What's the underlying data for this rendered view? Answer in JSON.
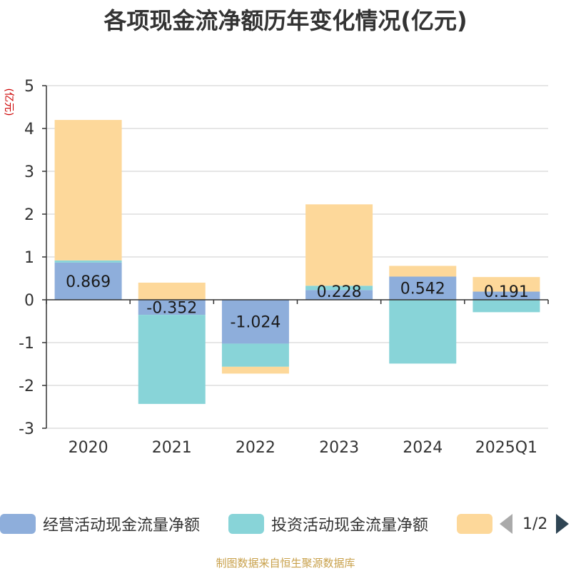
{
  "chart_data": {
    "type": "bar",
    "stacked": true,
    "title": "各项现金流净额历年变化情况(亿元)",
    "ylabel": "(亿元)",
    "xlabel": "",
    "ylim": [
      -3,
      5
    ],
    "yticks": [
      5,
      4,
      3,
      2,
      1,
      0,
      -1,
      -2,
      -3
    ],
    "categories": [
      "2020",
      "2021",
      "2022",
      "2023",
      "2024",
      "2025Q1"
    ],
    "series": [
      {
        "name": "经营活动现金流量净额",
        "color": "#8eaedb",
        "values": [
          0.869,
          -0.352,
          -1.024,
          0.228,
          0.542,
          0.191
        ],
        "labels": [
          "0.869",
          "-0.352",
          "-1.024",
          "0.228",
          "0.542",
          "0.191"
        ]
      },
      {
        "name": "投资活动现金流量净额",
        "color": "#88d4d8",
        "values": [
          0.05,
          -2.08,
          -0.54,
          0.1,
          -1.49,
          -0.29
        ]
      },
      {
        "name": "",
        "color": "#fdd89a",
        "values": [
          3.28,
          0.4,
          -0.16,
          1.9,
          0.25,
          0.34
        ]
      }
    ],
    "legend_page": "1/2",
    "grid": true
  },
  "source": "制图数据来自恒生聚源数据库"
}
